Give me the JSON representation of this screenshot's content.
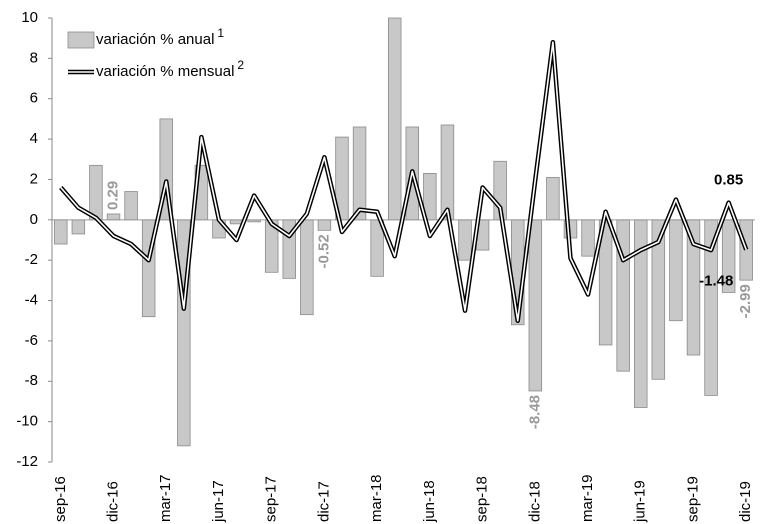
{
  "chart_data": {
    "type": "bar-line",
    "categories": [
      "sep-16",
      null,
      null,
      "dic-16",
      null,
      null,
      "mar-17",
      null,
      null,
      "jun-17",
      null,
      null,
      "sep-17",
      null,
      null,
      "dic-17",
      null,
      null,
      "mar-18",
      null,
      null,
      "jun-18",
      null,
      null,
      "sep-18",
      null,
      null,
      "dic-18",
      null,
      null,
      "mar-19",
      null,
      null,
      "jun-19",
      null,
      null,
      "sep-19",
      null,
      null,
      "dic-19"
    ],
    "series": [
      {
        "name": "variación % anual",
        "footnote": "1",
        "type": "bar",
        "color": "#c8c8c8",
        "values": [
          -1.2,
          -0.7,
          2.7,
          0.29,
          1.4,
          -4.8,
          5.0,
          -11.2,
          2.7,
          -0.9,
          -0.2,
          -0.1,
          -2.6,
          -2.9,
          -4.7,
          -0.52,
          4.1,
          4.6,
          -2.8,
          10.0,
          4.6,
          2.3,
          4.7,
          -2.0,
          -1.5,
          2.9,
          -5.2,
          -8.48,
          2.1,
          -0.9,
          -1.8,
          -6.2,
          -7.5,
          -9.3,
          -7.9,
          -5.0,
          -6.7,
          -8.7,
          -3.6,
          -2.99
        ],
        "value_labels": [
          null,
          null,
          null,
          "0.29",
          null,
          null,
          null,
          null,
          null,
          null,
          null,
          null,
          null,
          null,
          null,
          "-0.52",
          null,
          null,
          null,
          null,
          null,
          null,
          null,
          null,
          null,
          null,
          null,
          "-8.48",
          null,
          null,
          null,
          null,
          null,
          null,
          null,
          null,
          null,
          null,
          null,
          "-2.99"
        ]
      },
      {
        "name": "variación % mensual",
        "footnote": "2",
        "type": "line",
        "color": "#000000",
        "values": [
          1.6,
          0.6,
          0.1,
          -0.8,
          -1.2,
          -2.0,
          1.9,
          -4.4,
          4.1,
          0.0,
          -1.0,
          1.2,
          -0.2,
          -0.8,
          0.3,
          3.1,
          -0.6,
          0.5,
          0.4,
          -1.8,
          2.4,
          -0.8,
          0.5,
          -4.5,
          1.6,
          0.6,
          -5.0,
          2.0,
          8.8,
          -1.9,
          -3.7,
          0.4,
          -2.0,
          -1.5,
          -1.1,
          1.0,
          -1.2,
          -1.5,
          0.85,
          -1.48
        ],
        "value_labels": [
          null,
          null,
          null,
          null,
          null,
          null,
          null,
          null,
          null,
          null,
          null,
          null,
          null,
          null,
          null,
          null,
          null,
          null,
          null,
          null,
          null,
          null,
          null,
          null,
          null,
          null,
          null,
          null,
          null,
          null,
          null,
          null,
          null,
          null,
          null,
          null,
          null,
          null,
          "0.85",
          "-1.48"
        ]
      }
    ],
    "ylim": [
      -12,
      10
    ],
    "yticks": [
      -12,
      -10,
      -8,
      -6,
      -4,
      -2,
      0,
      2,
      4,
      6,
      8,
      10
    ],
    "legend": "top-left"
  }
}
